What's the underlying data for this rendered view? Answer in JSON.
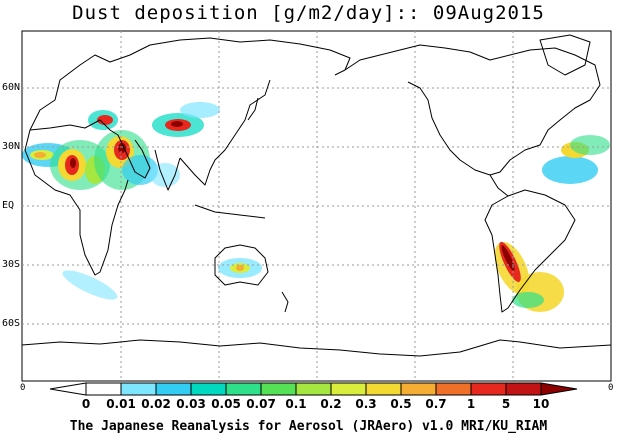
{
  "title": "Dust deposition [g/m2/day]:: 09Aug2015",
  "latitude_labels": [
    "60N",
    "30N",
    "EQ",
    "30S",
    "60S"
  ],
  "edge_label_left": "0",
  "edge_label_right": "0",
  "colorbar": {
    "ticks": [
      "0",
      "0.01",
      "0.02",
      "0.03",
      "0.05",
      "0.07",
      "0.1",
      "0.2",
      "0.3",
      "0.5",
      "0.7",
      "1",
      "5",
      "10"
    ],
    "colors": [
      "#ffffff",
      "#7fe6ff",
      "#33ccf2",
      "#00d9c0",
      "#2ee08a",
      "#55e055",
      "#a6e640",
      "#d9ee3c",
      "#f5d933",
      "#f5ad33",
      "#f0702a",
      "#e6281e",
      "#c21414",
      "#8c0000"
    ]
  },
  "credit": "The Japanese Reanalysis for Aerosol (JRAero) v1.0 MRI/KU_RIAM"
}
